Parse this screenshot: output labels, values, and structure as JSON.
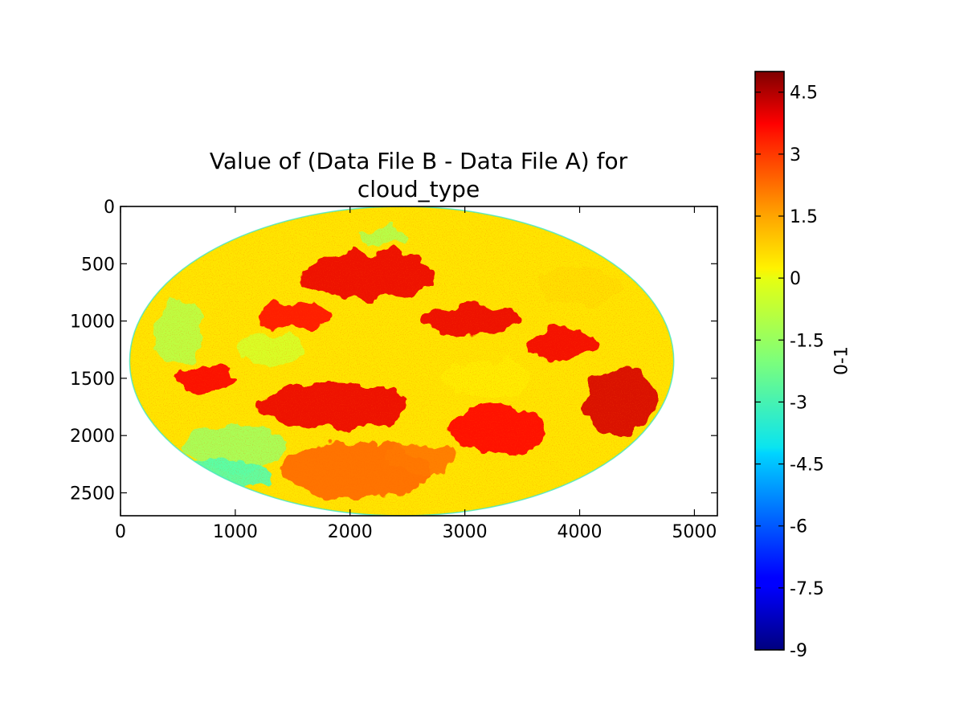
{
  "chart_data": {
    "type": "heatmap",
    "title_lines": [
      "Value of (Data File B - Data File A) for",
      "cloud_type"
    ],
    "xlabel": "",
    "ylabel": "",
    "xlim": [
      0,
      5200
    ],
    "ylim": [
      2700,
      0
    ],
    "x_ticks": [
      {
        "value": 0,
        "label": "0"
      },
      {
        "value": 1000,
        "label": "1000"
      },
      {
        "value": 2000,
        "label": "2000"
      },
      {
        "value": 3000,
        "label": "3000"
      },
      {
        "value": 4000,
        "label": "4000"
      },
      {
        "value": 5000,
        "label": "5000"
      }
    ],
    "y_ticks": [
      {
        "value": 0,
        "label": "0"
      },
      {
        "value": 500,
        "label": "500"
      },
      {
        "value": 1000,
        "label": "1000"
      },
      {
        "value": 1500,
        "label": "1500"
      },
      {
        "value": 2000,
        "label": "2000"
      },
      {
        "value": 2500,
        "label": "2500"
      }
    ],
    "disk": {
      "center_x": 2450,
      "center_y": 1350,
      "radius_x": 2370,
      "radius_y": 1350
    },
    "colormap": "jet",
    "colorbar": {
      "label": "0-1",
      "range": [
        -9,
        5
      ],
      "ticks": [
        {
          "value": 4.5,
          "label": "4.5"
        },
        {
          "value": 3,
          "label": "3"
        },
        {
          "value": 1.5,
          "label": "1.5"
        },
        {
          "value": 0,
          "label": "0"
        },
        {
          "value": -1.5,
          "label": "-1.5"
        },
        {
          "value": -3,
          "label": "-3"
        },
        {
          "value": -4.5,
          "label": "-4.5"
        },
        {
          "value": -6,
          "label": "-6"
        },
        {
          "value": -7.5,
          "label": "-7.5"
        },
        {
          "value": -9,
          "label": "-9"
        }
      ]
    },
    "regions": [
      {
        "cx": 2150,
        "cy": 600,
        "rx": 600,
        "ry": 200,
        "value": 3.5
      },
      {
        "cx": 3050,
        "cy": 980,
        "rx": 450,
        "ry": 130,
        "value": 3.5
      },
      {
        "cx": 4350,
        "cy": 1700,
        "rx": 300,
        "ry": 300,
        "value": 3.8
      },
      {
        "cx": 750,
        "cy": 1500,
        "rx": 250,
        "ry": 110,
        "value": 3.3
      },
      {
        "cx": 1850,
        "cy": 1750,
        "rx": 650,
        "ry": 200,
        "value": 3.5
      },
      {
        "cx": 3300,
        "cy": 1950,
        "rx": 420,
        "ry": 220,
        "value": 3.2
      },
      {
        "cx": 3850,
        "cy": 1200,
        "rx": 300,
        "ry": 140,
        "value": 3.4
      },
      {
        "cx": 1500,
        "cy": 950,
        "rx": 320,
        "ry": 120,
        "value": 3.0
      },
      {
        "cx": 2050,
        "cy": 2300,
        "rx": 650,
        "ry": 250,
        "value": 1.8
      },
      {
        "cx": 2600,
        "cy": 2200,
        "rx": 300,
        "ry": 130,
        "value": 1.6
      },
      {
        "cx": 1000,
        "cy": 2100,
        "rx": 450,
        "ry": 200,
        "value": -1.5
      },
      {
        "cx": 900,
        "cy": 2350,
        "rx": 380,
        "ry": 150,
        "value": -2.6
      },
      {
        "cx": 2300,
        "cy": 250,
        "rx": 220,
        "ry": 90,
        "value": -1.3
      },
      {
        "cx": 500,
        "cy": 1100,
        "rx": 220,
        "ry": 280,
        "value": -1.2
      },
      {
        "cx": 3200,
        "cy": 1500,
        "rx": 400,
        "ry": 150,
        "value": 0.0
      },
      {
        "cx": 4000,
        "cy": 700,
        "rx": 380,
        "ry": 160,
        "value": 0.2
      },
      {
        "cx": 1300,
        "cy": 1250,
        "rx": 300,
        "ry": 150,
        "value": -0.8
      }
    ]
  }
}
